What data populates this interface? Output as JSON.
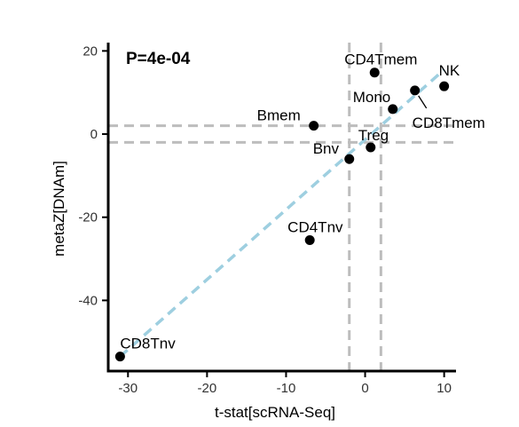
{
  "chart_data": {
    "type": "scatter",
    "title": "",
    "annotation": "P=4e-04",
    "xlabel": "t-stat[scRNA-Seq]",
    "ylabel": "metaZ[DNAm]",
    "xlim": [
      -32.5,
      11.5
    ],
    "ylim": [
      -57,
      22
    ],
    "xticks": [
      -30,
      -20,
      -10,
      0,
      10
    ],
    "yticks": [
      -40,
      -20,
      0,
      20
    ],
    "grid": false,
    "points": [
      {
        "label": "CD8Tnv",
        "x": -31,
        "y": -53.5
      },
      {
        "label": "CD4Tnv",
        "x": -7,
        "y": -25.5
      },
      {
        "label": "Bmem",
        "x": -6.5,
        "y": 2
      },
      {
        "label": "Bnv",
        "x": -2,
        "y": -6
      },
      {
        "label": "Treg",
        "x": 0.7,
        "y": -3.2
      },
      {
        "label": "CD4Tmem",
        "x": 1.2,
        "y": 14.8
      },
      {
        "label": "Mono",
        "x": 3.5,
        "y": 6
      },
      {
        "label": "CD8Tmem",
        "x": 6.3,
        "y": 10.5
      },
      {
        "label": "NK",
        "x": 10,
        "y": 11.5
      }
    ],
    "reference_lines": {
      "vertical": [
        -2,
        2
      ],
      "horizontal": [
        -2,
        2
      ]
    },
    "trend_line": {
      "x": [
        -31,
        10
      ],
      "y": [
        -53.5,
        15.5
      ]
    },
    "colors": {
      "points": "#000000",
      "trend": "#9ecfe0",
      "reference": "#bdbdbd",
      "axis": "#000000"
    }
  }
}
